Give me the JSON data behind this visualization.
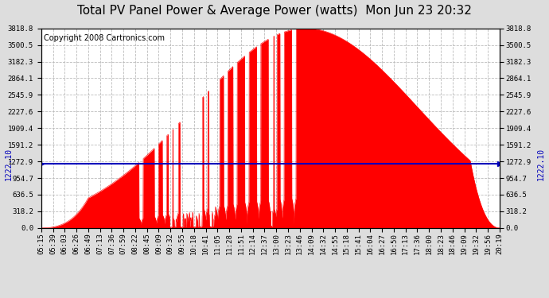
{
  "title": "Total PV Panel Power & Average Power (watts)  Mon Jun 23 20:32",
  "copyright": "Copyright 2008 Cartronics.com",
  "average_value": 1222.1,
  "y_max": 3818.8,
  "y_ticks": [
    0.0,
    318.2,
    636.5,
    954.7,
    1272.9,
    1591.2,
    1909.4,
    2227.6,
    2545.9,
    2864.1,
    3182.3,
    3500.5,
    3818.8
  ],
  "x_labels": [
    "05:15",
    "05:39",
    "06:03",
    "06:26",
    "06:49",
    "07:13",
    "07:36",
    "07:59",
    "08:22",
    "08:45",
    "09:09",
    "09:32",
    "09:55",
    "10:18",
    "10:41",
    "11:05",
    "11:28",
    "11:51",
    "12:14",
    "12:37",
    "13:00",
    "13:23",
    "13:46",
    "14:09",
    "14:32",
    "14:55",
    "15:18",
    "15:41",
    "16:04",
    "16:27",
    "16:50",
    "17:13",
    "17:36",
    "18:00",
    "18:23",
    "18:46",
    "19:09",
    "19:32",
    "19:56",
    "20:19"
  ],
  "fill_color": "#FF0000",
  "avg_line_color": "#0000BB",
  "grid_color": "#BBBBBB",
  "bg_color": "#FFFFFF",
  "outer_bg": "#DDDDDD",
  "title_fontsize": 11,
  "copyright_fontsize": 7,
  "tick_fontsize": 6.5,
  "avg_label": "1222.10",
  "avg_label_fontsize": 7
}
